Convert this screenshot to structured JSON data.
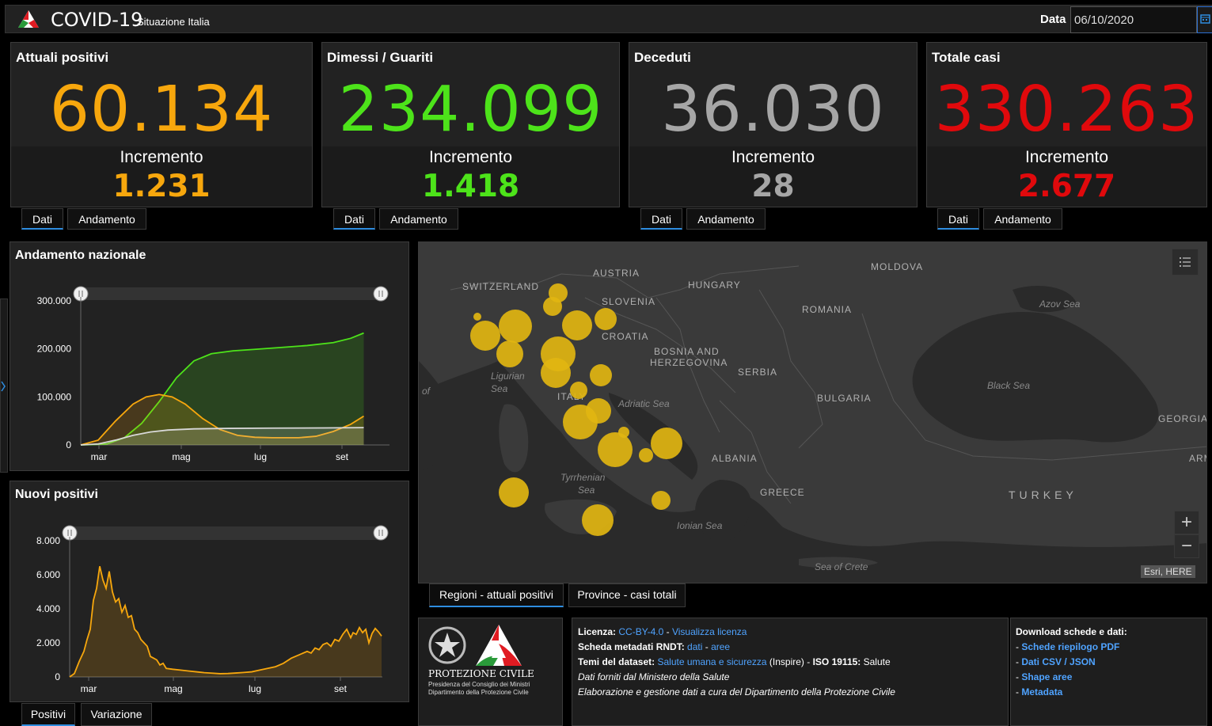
{
  "header": {
    "title": "COVID-19",
    "subtitle": "Situazione Italia",
    "date_label": "Data",
    "date_value": "06/10/2020"
  },
  "cards": [
    {
      "title": "Attuali positivi",
      "value": "60.134",
      "increment_label": "Incremento",
      "increment": "1.231",
      "color": "#f7a70d",
      "tabs": [
        "Dati",
        "Andamento"
      ]
    },
    {
      "title": "Dimessi / Guariti",
      "value": "234.099",
      "increment_label": "Incremento",
      "increment": "1.418",
      "color": "#4de31a",
      "tabs": [
        "Dati",
        "Andamento"
      ]
    },
    {
      "title": "Deceduti",
      "value": "36.030",
      "increment_label": "Incremento",
      "increment": "28",
      "color": "#a6a6a6",
      "tabs": [
        "Dati",
        "Andamento"
      ]
    },
    {
      "title": "Totale casi",
      "value": "330.263",
      "increment_label": "Incremento",
      "increment": "2.677",
      "color": "#e0090c",
      "tabs": [
        "Dati",
        "Andamento"
      ]
    }
  ],
  "national_trend": {
    "title": "Andamento nazionale",
    "chart_data": {
      "type": "line",
      "x": [
        "mar",
        "mag",
        "lug",
        "set"
      ],
      "yticks": [
        "300.000",
        "200.000",
        "100.000",
        "0"
      ],
      "ylim": [
        0,
        300000
      ],
      "series": [
        {
          "color": "#4de31a",
          "points": [
            [
              0,
              0
            ],
            [
              30,
              2000
            ],
            [
              50,
              15000
            ],
            [
              70,
              45000
            ],
            [
              90,
              90000
            ],
            [
              110,
              140000
            ],
            [
              130,
              175000
            ],
            [
              150,
              190000
            ],
            [
              175,
              196000
            ],
            [
              200,
              199000
            ],
            [
              230,
              203000
            ],
            [
              260,
              207000
            ],
            [
              290,
              213000
            ],
            [
              310,
              222000
            ],
            [
              325,
              233000
            ]
          ]
        },
        {
          "color": "#f7a70d",
          "points": [
            [
              0,
              0
            ],
            [
              20,
              10000
            ],
            [
              40,
              50000
            ],
            [
              60,
              85000
            ],
            [
              75,
              100000
            ],
            [
              90,
              105000
            ],
            [
              105,
              100000
            ],
            [
              120,
              85000
            ],
            [
              140,
              55000
            ],
            [
              160,
              32000
            ],
            [
              180,
              20000
            ],
            [
              200,
              16000
            ],
            [
              220,
              15000
            ],
            [
              250,
              15000
            ],
            [
              270,
              18000
            ],
            [
              290,
              28000
            ],
            [
              310,
              43000
            ],
            [
              325,
              60000
            ]
          ]
        },
        {
          "color": "#d8d8d8",
          "points": [
            [
              0,
              0
            ],
            [
              20,
              2000
            ],
            [
              40,
              10000
            ],
            [
              60,
              20000
            ],
            [
              80,
              27000
            ],
            [
              100,
              31000
            ],
            [
              130,
              33500
            ],
            [
              170,
              34500
            ],
            [
              220,
              35000
            ],
            [
              280,
              35500
            ],
            [
              325,
              36000
            ]
          ]
        }
      ]
    }
  },
  "new_positives": {
    "title": "Nuovi positivi",
    "chart_data": {
      "type": "area",
      "x": [
        "mar",
        "mag",
        "lug",
        "set"
      ],
      "yticks": [
        "8.000",
        "6.000",
        "4.000",
        "2.000",
        "0"
      ],
      "ylim": [
        0,
        8000
      ],
      "series": [
        {
          "color": "#f7a70d",
          "points": [
            [
              0,
              0
            ],
            [
              6,
              200
            ],
            [
              12,
              900
            ],
            [
              18,
              1500
            ],
            [
              22,
              2200
            ],
            [
              26,
              2800
            ],
            [
              30,
              4500
            ],
            [
              34,
              5200
            ],
            [
              38,
              6500
            ],
            [
              42,
              5700
            ],
            [
              46,
              5200
            ],
            [
              50,
              6200
            ],
            [
              54,
              5000
            ],
            [
              58,
              4400
            ],
            [
              62,
              4600
            ],
            [
              66,
              3800
            ],
            [
              70,
              4200
            ],
            [
              74,
              3500
            ],
            [
              78,
              3600
            ],
            [
              82,
              2800
            ],
            [
              86,
              2600
            ],
            [
              90,
              2200
            ],
            [
              94,
              2000
            ],
            [
              98,
              1800
            ],
            [
              102,
              1200
            ],
            [
              106,
              1100
            ],
            [
              110,
              1000
            ],
            [
              114,
              700
            ],
            [
              118,
              800
            ],
            [
              122,
              500
            ],
            [
              130,
              450
            ],
            [
              140,
              400
            ],
            [
              150,
              350
            ],
            [
              160,
              300
            ],
            [
              170,
              250
            ],
            [
              180,
              220
            ],
            [
              190,
              190
            ],
            [
              200,
              200
            ],
            [
              210,
              230
            ],
            [
              220,
              260
            ],
            [
              230,
              300
            ],
            [
              240,
              400
            ],
            [
              250,
              500
            ],
            [
              260,
              600
            ],
            [
              270,
              800
            ],
            [
              280,
              1100
            ],
            [
              290,
              1300
            ],
            [
              300,
              1500
            ],
            [
              305,
              1400
            ],
            [
              310,
              1700
            ],
            [
              315,
              1600
            ],
            [
              320,
              1900
            ],
            [
              325,
              2000
            ],
            [
              330,
              1800
            ],
            [
              335,
              2200
            ],
            [
              340,
              2100
            ],
            [
              345,
              2500
            ],
            [
              350,
              2800
            ],
            [
              355,
              2300
            ],
            [
              358,
              2600
            ],
            [
              362,
              2500
            ],
            [
              366,
              2900
            ],
            [
              370,
              2600
            ],
            [
              374,
              2800
            ],
            [
              378,
              2000
            ],
            [
              382,
              2550
            ],
            [
              386,
              2850
            ],
            [
              390,
              2650
            ],
            [
              394,
              2400
            ]
          ]
        }
      ]
    },
    "tabs": [
      "Positivi",
      "Variazione"
    ]
  },
  "map": {
    "country_labels": [
      "SWITZERLAND",
      "AUSTRIA",
      "HUNGARY",
      "MOLDOVA",
      "SLOVENIA",
      "ROMANIA",
      "CROATIA",
      "BOSNIA AND",
      "HERZEGOVINA",
      "SERBIA",
      "BULGARIA",
      "ALBANIA",
      "GREECE",
      "TURKEY",
      "GEORGIA",
      "ARM",
      "ITALY"
    ],
    "sea_labels": [
      "Azov Sea",
      "Ligurian",
      "Sea",
      "Adriatic Sea",
      "Black Sea",
      "Tyrrhenian",
      "Sea",
      "Ionian Sea",
      "Sea of Crete",
      "of"
    ],
    "attribution": "Esri, HERE",
    "zoom_in": "+",
    "zoom_out": "−",
    "tabs": [
      "Regioni - attuali positivi",
      "Province - casi totali"
    ],
    "bubble_color": "#e1b511"
  },
  "logo": {
    "org": "PROTEZIONE CIVILE",
    "line1": "Presidenza del Consiglio dei Ministri",
    "line2": "Dipartimento della Protezione Civile"
  },
  "info": {
    "license_label": "Licenza:",
    "license_value": "CC-BY-4.0",
    "license_sep": " - ",
    "license_link": "Visualizza licenza",
    "meta_label": "Scheda metadati RNDT:",
    "meta_link1": "dati",
    "meta_sep": " - ",
    "meta_link2": "aree",
    "themes_label": "Temi del dataset:",
    "themes_link": "Salute umana e sicurezza",
    "themes_suffix": " (Inspire) - ",
    "iso_label": "ISO 19115:",
    "iso_value": " Salute",
    "source_text": "Dati forniti dal Ministero della Salute",
    "processing_text": "Elaborazione e gestione dati a cura del Dipartimento della Protezione Civile"
  },
  "downloads": {
    "title": "Download schede e dati:",
    "dash": "- ",
    "links": [
      "Schede riepilogo PDF",
      "Dati CSV / JSON",
      "Shape aree",
      "Metadata"
    ]
  }
}
